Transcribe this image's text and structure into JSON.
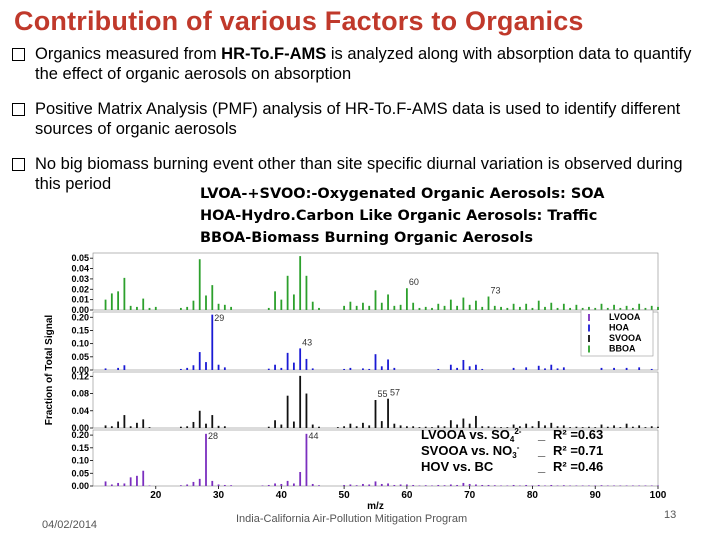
{
  "slide": {
    "title": "Contribution of various Factors to Organics",
    "bullets": [
      {
        "pre": "Organics measured from ",
        "bold": "HR-To.F-AMS",
        "post": " is analyzed along with absorption data to quantify the effect of organic aerosols on absorption"
      },
      {
        "pre": "Positive Matrix Analysis (PMF) analysis of HR-To.F-AMS data is used to identify different sources of organic aerosols",
        "bold": "",
        "post": ""
      },
      {
        "pre": "No big biomass burning event other than site specific diurnal variation is observed during this period",
        "bold": "",
        "post": ""
      }
    ],
    "definitions": [
      "LVOA-+SVOO:-Oxygenated Organic Aerosols: SOA",
      "HOA-Hydro.Carbon Like Organic Aerosols: Traffic",
      "BBOA-Biomass Burning Organic Aerosols"
    ],
    "footer": {
      "date": "04/02/2014",
      "program": "India-California Air-Pollution Mitigation Program",
      "page": "13"
    }
  },
  "chart_data": {
    "type": "bar",
    "xlabel": "m/z",
    "ylabel": "Fraction of Total Signal",
    "xlim": [
      10,
      100
    ],
    "x_ticks": [
      20,
      30,
      40,
      50,
      60,
      70,
      80,
      90,
      100
    ],
    "legend": {
      "placement": "right",
      "entries": [
        "LVOOA",
        "HOA",
        "SVOOA",
        "BBOA"
      ]
    },
    "colors": {
      "LVOOA": "#7b2fbf",
      "HOA": "#1a1ad4",
      "SVOOA": "#111111",
      "BBOA": "#2ca02c"
    },
    "panels": [
      {
        "name": "BBOA",
        "ylim": [
          0,
          0.055
        ],
        "y_ticks": [
          "0.05",
          "0.04",
          "0.03",
          "0.02",
          "0.01",
          "0.00"
        ],
        "peak_labels": [
          {
            "mz": 60,
            "text": "60"
          },
          {
            "mz": 73,
            "text": "73"
          }
        ],
        "mz": [
          12,
          13,
          14,
          15,
          16,
          17,
          18,
          19,
          20,
          24,
          25,
          26,
          27,
          28,
          29,
          30,
          31,
          32,
          38,
          39,
          40,
          41,
          42,
          43,
          44,
          45,
          46,
          50,
          51,
          52,
          53,
          54,
          55,
          56,
          57,
          58,
          59,
          60,
          61,
          62,
          63,
          64,
          65,
          66,
          67,
          68,
          69,
          70,
          71,
          72,
          73,
          74,
          75,
          76,
          77,
          78,
          79,
          80,
          81,
          82,
          83,
          84,
          85,
          86,
          87,
          88,
          89,
          90,
          91,
          92,
          93,
          94,
          95,
          96,
          97,
          98,
          99,
          100
        ],
        "values": [
          0.01,
          0.016,
          0.018,
          0.031,
          0.004,
          0.003,
          0.011,
          0.002,
          0.003,
          0.002,
          0.003,
          0.009,
          0.049,
          0.014,
          0.024,
          0.006,
          0.005,
          0.003,
          0.002,
          0.018,
          0.01,
          0.033,
          0.015,
          0.052,
          0.033,
          0.008,
          0.002,
          0.004,
          0.008,
          0.004,
          0.007,
          0.004,
          0.019,
          0.007,
          0.015,
          0.004,
          0.005,
          0.021,
          0.007,
          0.002,
          0.003,
          0.002,
          0.006,
          0.004,
          0.01,
          0.004,
          0.012,
          0.005,
          0.009,
          0.003,
          0.013,
          0.004,
          0.003,
          0.002,
          0.006,
          0.003,
          0.006,
          0.002,
          0.009,
          0.003,
          0.007,
          0.002,
          0.006,
          0.002,
          0.005,
          0.002,
          0.003,
          0.002,
          0.006,
          0.002,
          0.005,
          0.002,
          0.004,
          0.002,
          0.006,
          0.002,
          0.004,
          0.003
        ]
      },
      {
        "name": "HOA",
        "ylim": [
          0,
          0.22
        ],
        "y_ticks": [
          "0.20",
          "0.15",
          "0.10",
          "0.05",
          "0.00"
        ],
        "peak_labels": [
          {
            "mz": 29,
            "text": "29"
          },
          {
            "mz": 43,
            "text": "43"
          }
        ],
        "mz": [
          12,
          14,
          15,
          24,
          25,
          26,
          27,
          28,
          29,
          30,
          31,
          38,
          39,
          40,
          41,
          42,
          43,
          44,
          45,
          50,
          51,
          53,
          54,
          55,
          56,
          57,
          58,
          65,
          67,
          68,
          69,
          70,
          71,
          72,
          77,
          79,
          81,
          82,
          83,
          84,
          85,
          91,
          93,
          95,
          97,
          99
        ],
        "values": [
          0.006,
          0.008,
          0.018,
          0.004,
          0.008,
          0.018,
          0.068,
          0.03,
          0.21,
          0.02,
          0.01,
          0.005,
          0.02,
          0.008,
          0.065,
          0.028,
          0.082,
          0.042,
          0.006,
          0.004,
          0.008,
          0.006,
          0.004,
          0.06,
          0.014,
          0.04,
          0.008,
          0.004,
          0.02,
          0.008,
          0.038,
          0.014,
          0.02,
          0.004,
          0.008,
          0.01,
          0.016,
          0.006,
          0.02,
          0.006,
          0.01,
          0.008,
          0.008,
          0.008,
          0.01,
          0.004
        ]
      },
      {
        "name": "SVOOA",
        "ylim": [
          0,
          0.13
        ],
        "y_ticks": [
          "0.12",
          "0.08",
          "0.04",
          "0.00"
        ],
        "peak_labels": [
          {
            "mz": 55,
            "text": "55"
          },
          {
            "mz": 57,
            "text": "57"
          }
        ],
        "mz": [
          12,
          13,
          14,
          15,
          16,
          17,
          18,
          19,
          24,
          25,
          26,
          27,
          28,
          29,
          30,
          31,
          38,
          39,
          40,
          41,
          42,
          43,
          44,
          45,
          46,
          49,
          50,
          51,
          52,
          53,
          54,
          55,
          56,
          57,
          58,
          59,
          60,
          61,
          62,
          63,
          64,
          65,
          66,
          67,
          68,
          69,
          70,
          71,
          72,
          73,
          74,
          75,
          76,
          77,
          78,
          79,
          80,
          81,
          82,
          83,
          84,
          85,
          86,
          87,
          88,
          89,
          90,
          91,
          92,
          93,
          94,
          95,
          96,
          97,
          98,
          99,
          100
        ],
        "values": [
          0.006,
          0.004,
          0.015,
          0.03,
          0.004,
          0.012,
          0.02,
          0.002,
          0.003,
          0.004,
          0.014,
          0.04,
          0.01,
          0.03,
          0.005,
          0.004,
          0.003,
          0.018,
          0.008,
          0.075,
          0.015,
          0.121,
          0.08,
          0.008,
          0.003,
          0.002,
          0.004,
          0.01,
          0.004,
          0.012,
          0.006,
          0.065,
          0.016,
          0.068,
          0.01,
          0.006,
          0.004,
          0.004,
          0.002,
          0.003,
          0.002,
          0.006,
          0.004,
          0.018,
          0.008,
          0.022,
          0.01,
          0.028,
          0.004,
          0.004,
          0.003,
          0.002,
          0.002,
          0.008,
          0.004,
          0.01,
          0.004,
          0.016,
          0.006,
          0.012,
          0.004,
          0.006,
          0.002,
          0.003,
          0.002,
          0.003,
          0.002,
          0.008,
          0.003,
          0.006,
          0.002,
          0.01,
          0.003,
          0.006,
          0.002,
          0.004,
          0.003
        ]
      },
      {
        "name": "LVOOA",
        "ylim": [
          0,
          0.22
        ],
        "y_ticks": [
          "0.20",
          "0.15",
          "0.10",
          "0.05",
          "0.00"
        ],
        "peak_labels": [
          {
            "mz": 28,
            "text": "28"
          },
          {
            "mz": 44,
            "text": "44"
          }
        ],
        "mz": [
          12,
          13,
          14,
          15,
          16,
          17,
          18,
          19,
          24,
          25,
          26,
          27,
          28,
          29,
          30,
          31,
          32,
          37,
          38,
          39,
          40,
          41,
          42,
          43,
          44,
          45,
          46,
          50,
          51,
          52,
          53,
          54,
          55,
          56,
          57,
          58,
          59,
          60,
          61,
          62,
          63,
          64,
          65,
          66,
          67,
          68,
          69,
          70,
          71,
          72,
          73,
          74,
          75,
          76,
          77,
          78,
          79,
          80,
          81,
          82,
          83,
          84,
          85,
          86,
          87,
          88,
          89,
          90,
          91,
          92,
          93,
          94,
          95,
          96,
          97,
          98,
          99,
          100
        ],
        "values": [
          0.018,
          0.006,
          0.012,
          0.01,
          0.034,
          0.04,
          0.06,
          0.002,
          0.003,
          0.006,
          0.016,
          0.028,
          0.205,
          0.02,
          0.006,
          0.004,
          0.003,
          0.002,
          0.004,
          0.01,
          0.008,
          0.02,
          0.01,
          0.055,
          0.205,
          0.008,
          0.003,
          0.004,
          0.006,
          0.003,
          0.008,
          0.006,
          0.018,
          0.008,
          0.01,
          0.004,
          0.006,
          0.006,
          0.004,
          0.002,
          0.003,
          0.002,
          0.004,
          0.003,
          0.006,
          0.004,
          0.012,
          0.008,
          0.006,
          0.004,
          0.004,
          0.003,
          0.002,
          0.002,
          0.004,
          0.002,
          0.004,
          0.002,
          0.004,
          0.002,
          0.004,
          0.002,
          0.003,
          0.002,
          0.002,
          0.002,
          0.002,
          0.002,
          0.003,
          0.002,
          0.002,
          0.002,
          0.002,
          0.002,
          0.002,
          0.002,
          0.002,
          0.002
        ]
      }
    ],
    "correlations": [
      {
        "label": "LVOOA vs. SO",
        "sub": "4",
        "sup": "2-",
        "tail": "_",
        "r2": "R² =0.63"
      },
      {
        "label": "SVOOA vs. NO",
        "sub": "3",
        "sup": "-",
        "tail": "_",
        "r2": "R² =0.71"
      },
      {
        "label": "HOV vs. BC",
        "sub": "",
        "sup": "",
        "tail": "_",
        "r2": "R² =0.46"
      }
    ]
  }
}
